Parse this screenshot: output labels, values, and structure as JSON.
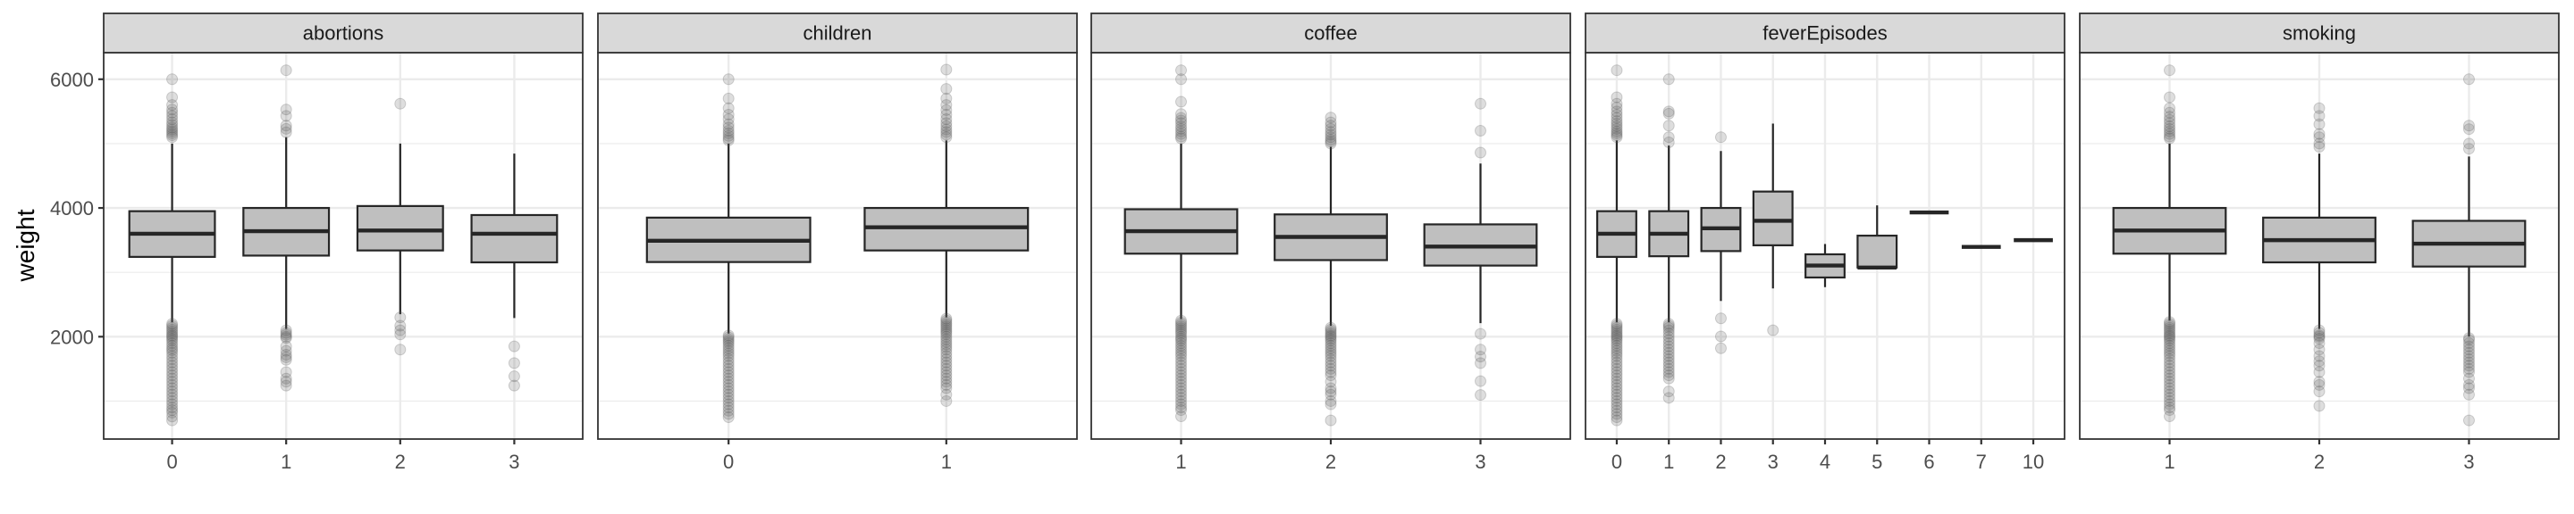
{
  "chart_data": {
    "type": "boxplot",
    "ylabel": "weight",
    "xlabel": "",
    "ylim": [
      410,
      6413
    ],
    "yticks": [
      2000,
      4000,
      6000
    ],
    "yminor": [
      1000,
      3000,
      5000
    ],
    "grid": true,
    "colors": {
      "box_fill": "#bfbfbf",
      "box_line": "#262626",
      "strip_fill": "#d9d9d9",
      "grid": "#ebebeb",
      "point": "#595959"
    },
    "panels": [
      {
        "title": "abortions",
        "groups": [
          {
            "x": "0",
            "q1": 3240,
            "median": 3600,
            "q3": 3950,
            "lo": 2225,
            "hi": 5000,
            "outliers": [
              5100,
              5130,
              5160,
              5190,
              5220,
              5250,
              5290,
              5330,
              5380,
              5430,
              5480,
              5530,
              5600,
              5720,
              6000,
              2200,
              2170,
              2140,
              2110,
              2080,
              2050,
              2020,
              2000,
              1970,
              1940,
              1900,
              1860,
              1820,
              1790,
              1750,
              1700,
              1650,
              1600,
              1550,
              1500,
              1450,
              1400,
              1350,
              1300,
              1250,
              1200,
              1150,
              1100,
              1050,
              1000,
              950,
              900,
              860,
              820,
              760,
              700
            ]
          },
          {
            "x": "1",
            "q1": 3260,
            "median": 3640,
            "q3": 4000,
            "lo": 2120,
            "hi": 5100,
            "outliers": [
              5175,
              5230,
              5280,
              5430,
              5530,
              6140,
              2100,
              2060,
              2030,
              2000,
              1980,
              1850,
              1780,
              1720,
              1680,
              1640,
              1450,
              1350,
              1300,
              1240
            ]
          },
          {
            "x": "2",
            "q1": 3340,
            "median": 3650,
            "q3": 4030,
            "lo": 2350,
            "hi": 5000,
            "outliers": [
              5620,
              2300,
              2170,
              2100,
              2035,
              1800
            ]
          },
          {
            "x": "3",
            "q1": 3155,
            "median": 3600,
            "q3": 3890,
            "lo": 2290,
            "hi": 4845,
            "outliers": [
              1850,
              1590,
              1385,
              1240
            ]
          }
        ]
      },
      {
        "title": "children",
        "groups": [
          {
            "x": "0",
            "q1": 3160,
            "median": 3490,
            "q3": 3850,
            "lo": 2050,
            "hi": 5000,
            "outliers": [
              5050,
              5080,
              5120,
              5160,
              5200,
              5250,
              5300,
              5380,
              5450,
              5550,
              5700,
              6000,
              2020,
              1990,
              1960,
              1930,
              1900,
              1860,
              1820,
              1780,
              1740,
              1700,
              1650,
              1600,
              1550,
              1500,
              1450,
              1400,
              1350,
              1300,
              1250,
              1200,
              1150,
              1100,
              1050,
              1000,
              950,
              900,
              850,
              800,
              750
            ]
          },
          {
            "x": "1",
            "q1": 3340,
            "median": 3700,
            "q3": 4000,
            "lo": 2300,
            "hi": 5050,
            "outliers": [
              5100,
              5140,
              5180,
              5220,
              5270,
              5320,
              5380,
              5450,
              5520,
              5600,
              5700,
              5850,
              6150,
              2280,
              2250,
              2220,
              2190,
              2160,
              2130,
              2100,
              2070,
              2040,
              2000,
              1960,
              1920,
              1880,
              1840,
              1800,
              1750,
              1700,
              1650,
              1600,
              1550,
              1500,
              1450,
              1400,
              1350,
              1300,
              1250,
              1200,
              1100,
              1000
            ]
          }
        ]
      },
      {
        "title": "coffee",
        "groups": [
          {
            "x": "1",
            "q1": 3290,
            "median": 3640,
            "q3": 3980,
            "lo": 2275,
            "hi": 5000,
            "outliers": [
              5080,
              5110,
              5150,
              5190,
              5230,
              5270,
              5320,
              5360,
              5400,
              5460,
              5650,
              6000,
              6140,
              2250,
              2220,
              2190,
              2160,
              2130,
              2100,
              2070,
              2040,
              2000,
              1970,
              1940,
              1900,
              1860,
              1820,
              1780,
              1740,
              1700,
              1650,
              1600,
              1550,
              1500,
              1450,
              1400,
              1350,
              1300,
              1250,
              1200,
              1150,
              1100,
              1050,
              1000,
              950,
              900,
              860,
              763
            ]
          },
          {
            "x": "2",
            "q1": 3190,
            "median": 3550,
            "q3": 3900,
            "lo": 2170,
            "hi": 4950,
            "outliers": [
              5000,
              5030,
              5060,
              5100,
              5140,
              5180,
              5230,
              5280,
              5330,
              5405,
              2140,
              2110,
              2080,
              2050,
              2020,
              2000,
              1970,
              1940,
              1900,
              1860,
              1820,
              1780,
              1740,
              1700,
              1650,
              1600,
              1550,
              1500,
              1450,
              1400,
              1300,
              1200,
              1150,
              1100,
              1000,
              950,
              700
            ]
          },
          {
            "x": "3",
            "q1": 3105,
            "median": 3400,
            "q3": 3745,
            "lo": 2210,
            "hi": 4690,
            "outliers": [
              5620,
              5200,
              4860,
              2045,
              1800,
              1690,
              1590,
              1310,
              1095
            ]
          }
        ]
      },
      {
        "title": "feverEpisodes",
        "groups": [
          {
            "x": "0",
            "q1": 3240,
            "median": 3600,
            "q3": 3950,
            "lo": 2225,
            "hi": 5050,
            "outliers": [
              5100,
              5130,
              5160,
              5190,
              5230,
              5270,
              5310,
              5350,
              5400,
              5450,
              5500,
              5560,
              5620,
              5720,
              6140,
              2200,
              2170,
              2140,
              2110,
              2080,
              2050,
              2020,
              2000,
              1970,
              1940,
              1900,
              1860,
              1820,
              1780,
              1740,
              1700,
              1650,
              1600,
              1550,
              1500,
              1450,
              1400,
              1350,
              1300,
              1250,
              1200,
              1150,
              1100,
              1050,
              1000,
              950,
              900,
              850,
              800,
              750,
              700
            ]
          },
          {
            "x": "1",
            "q1": 3250,
            "median": 3600,
            "q3": 3950,
            "lo": 2225,
            "hi": 4970,
            "outliers": [
              5020,
              5100,
              5280,
              5465,
              5500,
              6000,
              2200,
              2170,
              2140,
              2100,
              2050,
              2000,
              1950,
              1900,
              1850,
              1800,
              1750,
              1700,
              1650,
              1600,
              1550,
              1500,
              1450,
              1400,
              1350,
              1150,
              1050
            ]
          },
          {
            "x": "2",
            "q1": 3330,
            "median": 3685,
            "q3": 4000,
            "lo": 2555,
            "hi": 4885,
            "outliers": [
              5100,
              2285,
              2005,
              1820
            ]
          },
          {
            "x": "3",
            "q1": 3420,
            "median": 3800,
            "q3": 4255,
            "lo": 2750,
            "hi": 5310,
            "outliers": [
              2100
            ]
          },
          {
            "x": "4",
            "q1": 2920,
            "median": 3105,
            "q3": 3280,
            "lo": 2770,
            "hi": 3440,
            "outliers": []
          },
          {
            "x": "5",
            "q1": 3075,
            "median": 3075,
            "q3": 3570,
            "lo": 3075,
            "hi": 4040,
            "outliers": []
          },
          {
            "x": "6",
            "q1": 3930,
            "median": 3930,
            "q3": 3930,
            "lo": 3930,
            "hi": 3930,
            "outliers": []
          },
          {
            "x": "7",
            "q1": 3395,
            "median": 3395,
            "q3": 3395,
            "lo": 3395,
            "hi": 3395,
            "outliers": []
          },
          {
            "x": "10",
            "q1": 3500,
            "median": 3500,
            "q3": 3500,
            "lo": 3500,
            "hi": 3500,
            "outliers": []
          }
        ]
      },
      {
        "title": "smoking",
        "groups": [
          {
            "x": "1",
            "q1": 3290,
            "median": 3650,
            "q3": 4000,
            "lo": 2250,
            "hi": 5000,
            "outliers": [
              5080,
              5110,
              5150,
              5190,
              5230,
              5270,
              5320,
              5370,
              5420,
              5480,
              5550,
              5720,
              6140,
              2230,
              2200,
              2170,
              2140,
              2110,
              2080,
              2050,
              2020,
              2000,
              1970,
              1940,
              1900,
              1860,
              1820,
              1780,
              1740,
              1700,
              1650,
              1600,
              1550,
              1500,
              1450,
              1400,
              1350,
              1300,
              1250,
              1200,
              1150,
              1100,
              1050,
              1000,
              950,
              900,
              860,
              763
            ]
          },
          {
            "x": "2",
            "q1": 3155,
            "median": 3500,
            "q3": 3850,
            "lo": 2120,
            "hi": 4845,
            "outliers": [
              4950,
              5000,
              5100,
              5150,
              5300,
              5430,
              5550,
              2100,
              2060,
              2020,
              2000,
              1970,
              1900,
              1800,
              1700,
              1620,
              1550,
              1450,
              1300,
              1250,
              1150,
              925
            ]
          },
          {
            "x": "3",
            "q1": 3090,
            "median": 3445,
            "q3": 3800,
            "lo": 2000,
            "hi": 4800,
            "outliers": [
              4920,
              5000,
              5225,
              5280,
              6000,
              1980,
              1950,
              1900,
              1850,
              1800,
              1750,
              1700,
              1650,
              1600,
              1550,
              1500,
              1450,
              1350,
              1250,
              1200,
              1100,
              700
            ]
          }
        ]
      }
    ]
  }
}
